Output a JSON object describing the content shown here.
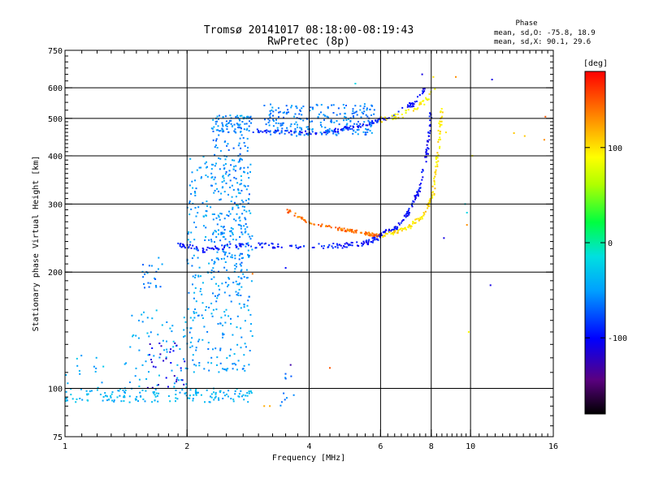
{
  "chart_data": {
    "type": "scatter",
    "title": "Tromsø 20141017 08:18:00-08:19:43",
    "subtitle": "RwPretec (8p)",
    "info": {
      "heading": "Phase",
      "line1": "mean, sd,O: -75.8, 18.9",
      "line2": "mean, sd,X:  90.1, 29.6"
    },
    "xlabel": "Frequency [MHz]",
    "ylabel": "Stationary phase Virtual Height [km]",
    "x_scale": "log",
    "y_scale": "log",
    "xlim": [
      1,
      16
    ],
    "ylim": [
      75,
      750
    ],
    "x_ticks": [
      1,
      2,
      4,
      6,
      8,
      10,
      16
    ],
    "x_tick_labels": [
      "1",
      "2",
      "4",
      "6",
      "8",
      "10",
      "16"
    ],
    "x_grid": [
      2,
      4,
      6,
      8,
      10
    ],
    "y_ticks": [
      75,
      100,
      200,
      300,
      400,
      500,
      600,
      750
    ],
    "y_tick_labels": [
      "75",
      "100",
      "200",
      "300",
      "400",
      "500",
      "600",
      "750"
    ],
    "y_grid": [
      100,
      200,
      300,
      400,
      500,
      600
    ],
    "grid": true,
    "colorbar": {
      "label": "[deg]",
      "range": [
        -180,
        180
      ],
      "ticks": [
        -100,
        0,
        100
      ],
      "tick_labels": [
        "-100",
        "0",
        "100"
      ]
    },
    "traces": [
      {
        "kind": "band",
        "x0": 1.0,
        "x1": 2.9,
        "y0": 92,
        "y1": 100,
        "phase": -40,
        "n": 160,
        "jitter": 0.02
      },
      {
        "kind": "band",
        "x0": 1.0,
        "x1": 1.25,
        "y0": 100,
        "y1": 125,
        "phase": -40,
        "n": 14,
        "jitter": 0.02
      },
      {
        "kind": "band",
        "x0": 1.4,
        "x1": 2.05,
        "y0": 100,
        "y1": 160,
        "phase": -45,
        "n": 70,
        "jitter": 0.04
      },
      {
        "kind": "band",
        "x0": 1.6,
        "x1": 2.0,
        "y0": 100,
        "y1": 135,
        "phase": -110,
        "n": 30,
        "jitter": 0.03
      },
      {
        "kind": "band",
        "x0": 1.55,
        "x1": 1.75,
        "y0": 175,
        "y1": 220,
        "phase": -60,
        "n": 22,
        "jitter": 0.02
      },
      {
        "kind": "band",
        "x0": 2.0,
        "x1": 2.9,
        "y0": 110,
        "y1": 400,
        "phase": -50,
        "n": 380,
        "jitter": 0.03
      },
      {
        "kind": "band",
        "x0": 2.3,
        "x1": 2.85,
        "y0": 200,
        "y1": 480,
        "phase": -60,
        "n": 160,
        "jitter": 0.04
      },
      {
        "kind": "band",
        "x0": 2.3,
        "x1": 2.9,
        "y0": 460,
        "y1": 510,
        "phase": -55,
        "n": 70,
        "jitter": 0.02
      },
      {
        "kind": "curve",
        "x": [
          2.9,
          3.4,
          4.0,
          4.7,
          5.4,
          6.0
        ],
        "y": [
          465,
          460,
          458,
          466,
          480,
          495
        ],
        "phase": -95,
        "n": 110,
        "jitter": 0.015
      },
      {
        "kind": "band",
        "x0": 3.1,
        "x1": 5.8,
        "y0": 450,
        "y1": 545,
        "phase": -60,
        "n": 230,
        "jitter": 0.03
      },
      {
        "kind": "curve",
        "x": [
          6.0,
          6.6,
          7.2,
          7.8
        ],
        "y": [
          495,
          515,
          545,
          600
        ],
        "phase": -100,
        "n": 40,
        "jitter": 0.02
      },
      {
        "kind": "curve",
        "x": [
          6.0,
          6.8,
          7.5,
          8.1
        ],
        "y": [
          495,
          510,
          540,
          590
        ],
        "phase": 95,
        "n": 45,
        "jitter": 0.02
      },
      {
        "kind": "curve",
        "x": [
          1.9,
          2.2,
          2.6,
          3.2,
          4.0,
          4.8,
          5.5,
          6.0
        ],
        "y": [
          235,
          228,
          235,
          234,
          233,
          234,
          238,
          248
        ],
        "phase": -95,
        "n": 160,
        "jitter": 0.02
      },
      {
        "kind": "curve",
        "x": [
          3.5,
          4.0,
          4.8,
          5.5,
          6.0
        ],
        "y": [
          290,
          268,
          258,
          252,
          248
        ],
        "phase": 140,
        "n": 110,
        "jitter": 0.012
      },
      {
        "kind": "curve",
        "x": [
          6.0,
          6.6,
          7.1,
          7.5,
          7.8,
          8.0
        ],
        "y": [
          250,
          262,
          290,
          330,
          400,
          520
        ],
        "phase": -100,
        "n": 120,
        "jitter": 0.015
      },
      {
        "kind": "curve",
        "x": [
          6.0,
          7.0,
          7.7,
          8.1,
          8.3,
          8.5
        ],
        "y": [
          248,
          260,
          282,
          320,
          400,
          530
        ],
        "phase": 100,
        "n": 130,
        "jitter": 0.015
      },
      {
        "kind": "band",
        "x0": 3.4,
        "x1": 3.7,
        "y0": 90,
        "y1": 110,
        "phase": -60,
        "n": 10,
        "jitter": 0.01
      }
    ],
    "outliers": [
      {
        "x": 3.1,
        "y": 90,
        "phase": 120
      },
      {
        "x": 3.2,
        "y": 90,
        "phase": 120
      },
      {
        "x": 4.5,
        "y": 113,
        "phase": 150
      },
      {
        "x": 3.6,
        "y": 115,
        "phase": -130
      },
      {
        "x": 3.5,
        "y": 205,
        "phase": -100
      },
      {
        "x": 2.9,
        "y": 198,
        "phase": 140
      },
      {
        "x": 8.6,
        "y": 245,
        "phase": -110
      },
      {
        "x": 9.8,
        "y": 285,
        "phase": -20
      },
      {
        "x": 9.8,
        "y": 265,
        "phase": 130
      },
      {
        "x": 9.9,
        "y": 140,
        "phase": 90
      },
      {
        "x": 11.2,
        "y": 185,
        "phase": -110
      },
      {
        "x": 11.3,
        "y": 630,
        "phase": -110
      },
      {
        "x": 10.1,
        "y": 400,
        "phase": 90
      },
      {
        "x": 12.8,
        "y": 458,
        "phase": 110
      },
      {
        "x": 13.6,
        "y": 450,
        "phase": 110
      },
      {
        "x": 15.2,
        "y": 440,
        "phase": 130
      },
      {
        "x": 15.3,
        "y": 505,
        "phase": 150
      },
      {
        "x": 9.2,
        "y": 640,
        "phase": 130
      },
      {
        "x": 8.1,
        "y": 640,
        "phase": 100
      },
      {
        "x": 8.7,
        "y": 460,
        "phase": 100
      },
      {
        "x": 9.7,
        "y": 300,
        "phase": -20
      },
      {
        "x": 2.3,
        "y": 240,
        "phase": -60
      },
      {
        "x": 5.2,
        "y": 615,
        "phase": -20
      },
      {
        "x": 7.6,
        "y": 650,
        "phase": -110
      }
    ]
  }
}
